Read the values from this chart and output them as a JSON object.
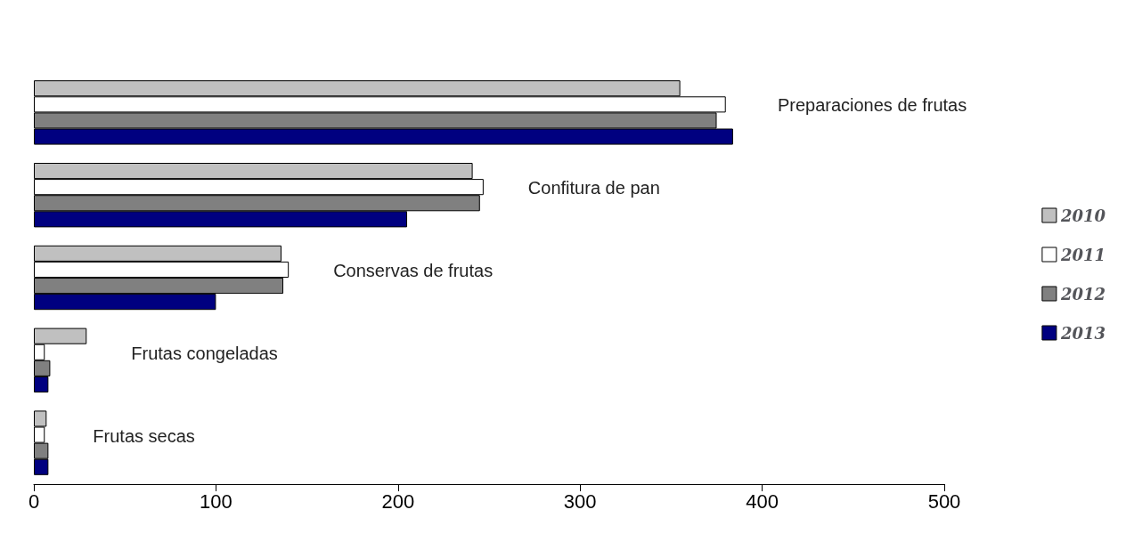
{
  "chart_data": {
    "type": "bar",
    "orientation": "horizontal",
    "categories": [
      "Preparaciones de frutas",
      "Confitura de pan",
      "Conservas de frutas",
      "Frutas congeladas",
      "Frutas secas"
    ],
    "series": [
      {
        "name": "2010",
        "color": "#c0c0c0",
        "values": [
          355,
          241,
          136,
          29,
          7
        ]
      },
      {
        "name": "2011",
        "color": "#ffffff",
        "values": [
          380,
          247,
          140,
          6,
          6
        ]
      },
      {
        "name": "2012",
        "color": "#808080",
        "values": [
          375,
          245,
          137,
          9,
          8
        ]
      },
      {
        "name": "2013",
        "color": "#000080",
        "values": [
          384,
          205,
          100,
          8,
          8
        ]
      }
    ],
    "xlim": [
      0,
      500
    ],
    "xticks": [
      0,
      100,
      200,
      300,
      400,
      500
    ],
    "grid": false,
    "legend": "right"
  }
}
